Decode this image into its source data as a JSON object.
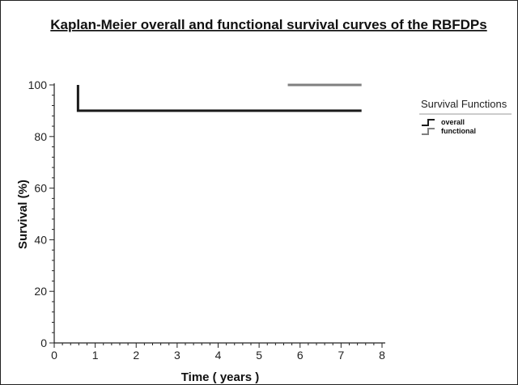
{
  "chart_data": {
    "type": "line",
    "step": true,
    "title": "Kaplan-Meier overall and functional survival curves of the RBFDPs",
    "xlabel": "Time ( years )",
    "ylabel": "Survival (%)",
    "xlim": [
      0,
      8
    ],
    "ylim": [
      0,
      100
    ],
    "x_ticks": [
      0,
      1,
      2,
      3,
      4,
      5,
      6,
      7,
      8
    ],
    "y_ticks": [
      0,
      20,
      40,
      60,
      80,
      100
    ],
    "x_tick_labels": [
      "0",
      "1",
      "2",
      "3",
      "4",
      "5",
      "6",
      "7",
      "8"
    ],
    "y_tick_labels": [
      "0",
      "20",
      "40",
      "60",
      "80",
      "100"
    ],
    "grid": false,
    "legend": {
      "title": "Survival Functions",
      "placement": "right"
    },
    "series": [
      {
        "name": "overall",
        "color": "#1a1a1a",
        "points": [
          [
            0.58,
            100
          ],
          [
            0.58,
            90
          ],
          [
            7.5,
            90
          ]
        ]
      },
      {
        "name": "functional",
        "color": "#808080",
        "points": [
          [
            5.7,
            100
          ],
          [
            7.5,
            100
          ]
        ]
      }
    ]
  }
}
